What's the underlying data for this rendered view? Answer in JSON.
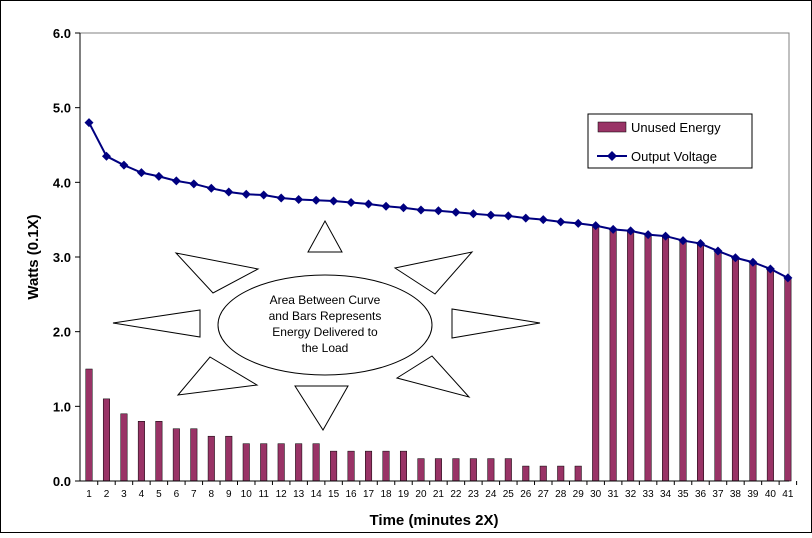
{
  "chart_data": {
    "type": "bar+line",
    "xlabel": "Time (minutes 2X)",
    "ylabel": "Watts (0.1X)",
    "ylim": [
      0,
      6
    ],
    "yticks": [
      "0.0",
      "1.0",
      "2.0",
      "3.0",
      "4.0",
      "5.0",
      "6.0"
    ],
    "categories": [
      "1",
      "2",
      "3",
      "4",
      "5",
      "6",
      "7",
      "8",
      "9",
      "10",
      "11",
      "12",
      "13",
      "14",
      "15",
      "16",
      "17",
      "18",
      "19",
      "20",
      "21",
      "22",
      "23",
      "24",
      "25",
      "26",
      "27",
      "28",
      "29",
      "30",
      "31",
      "32",
      "33",
      "34",
      "35",
      "36",
      "37",
      "38",
      "39",
      "40",
      "41"
    ],
    "series": [
      {
        "name": "Unused Energy",
        "type": "bar",
        "color": "#993366",
        "values": [
          1.5,
          1.1,
          0.9,
          0.8,
          0.8,
          0.7,
          0.7,
          0.6,
          0.6,
          0.5,
          0.5,
          0.5,
          0.5,
          0.5,
          0.4,
          0.4,
          0.4,
          0.4,
          0.4,
          0.3,
          0.3,
          0.3,
          0.3,
          0.3,
          0.3,
          0.2,
          0.2,
          0.2,
          0.2,
          3.4,
          3.37,
          3.35,
          3.3,
          3.28,
          3.22,
          3.18,
          3.08,
          2.99,
          2.93,
          2.84,
          2.72
        ]
      },
      {
        "name": "Output Voltage",
        "type": "line",
        "color": "#000080",
        "marker": "diamond",
        "values": [
          4.8,
          4.35,
          4.23,
          4.13,
          4.08,
          4.02,
          3.98,
          3.92,
          3.87,
          3.84,
          3.83,
          3.79,
          3.77,
          3.76,
          3.75,
          3.73,
          3.71,
          3.68,
          3.66,
          3.63,
          3.62,
          3.6,
          3.58,
          3.56,
          3.55,
          3.52,
          3.5,
          3.47,
          3.45,
          3.42,
          3.37,
          3.35,
          3.3,
          3.28,
          3.22,
          3.18,
          3.08,
          2.99,
          2.93,
          2.84,
          2.72
        ]
      }
    ],
    "legend_position": "top-right",
    "grid": false,
    "annotation": {
      "lines": [
        "Area Between Curve",
        "and Bars Represents",
        "Energy Delivered to",
        "the Load"
      ]
    }
  }
}
